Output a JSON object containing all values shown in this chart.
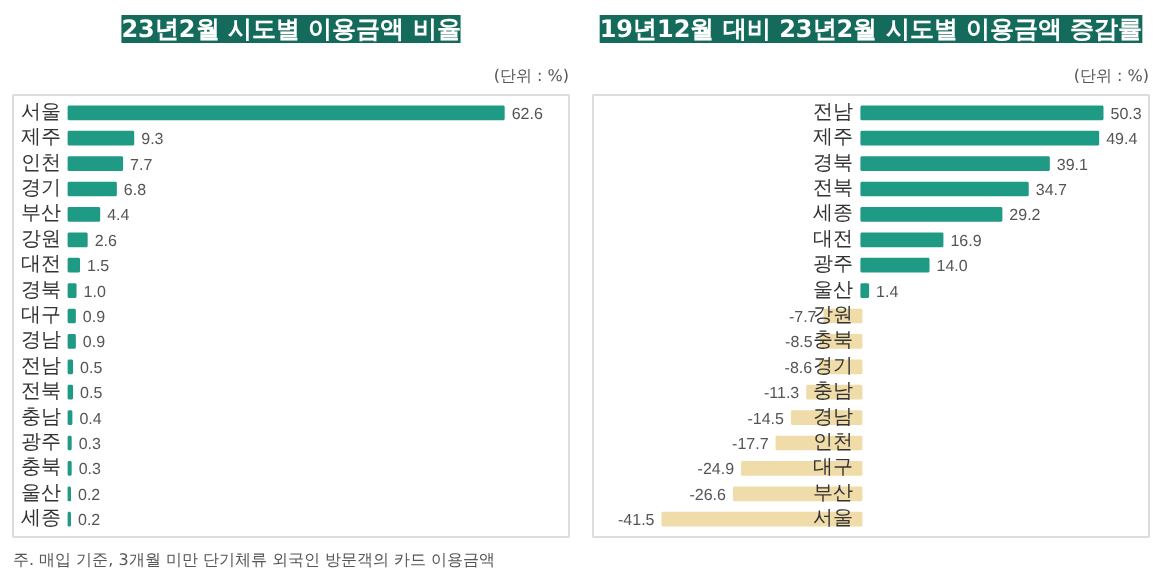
{
  "chart_data": [
    {
      "type": "bar",
      "orientation": "horizontal",
      "title": "23년2월 시도별 이용금액 비율",
      "annotations": [
        "(단위 : %)",
        "주. 매입 기준, 3개월 미만 단기체류 외국인 방문객의 카드 이용금액"
      ],
      "categories": [
        "서울",
        "제주",
        "인천",
        "경기",
        "부산",
        "강원",
        "대전",
        "경북",
        "대구",
        "경남",
        "전남",
        "전북",
        "충남",
        "광주",
        "충북",
        "울산",
        "세종"
      ],
      "values": [
        62.6,
        9.3,
        7.7,
        6.8,
        4.4,
        2.6,
        1.5,
        1.0,
        0.9,
        0.9,
        0.5,
        0.5,
        0.4,
        0.3,
        0.3,
        0.2,
        0.2
      ],
      "value_labels": [
        "62.6",
        "9.3",
        "7.7",
        "6.8",
        "4.4",
        "2.6",
        "1.5",
        "1.0",
        "0.9",
        "0.9",
        "0.5",
        "0.5",
        "0.4",
        "0.3",
        "0.3",
        "0.2",
        "0.2"
      ],
      "color": "#1f9a85",
      "xlim": [
        -8,
        72
      ],
      "grid": false
    },
    {
      "type": "bar",
      "orientation": "horizontal",
      "title": "19년12월 대비 23년2월 시도별 이용금액 증감률",
      "annotations": [
        "(단위 : %)"
      ],
      "categories": [
        "전남",
        "제주",
        "경북",
        "전북",
        "세종",
        "대전",
        "광주",
        "울산",
        "강원",
        "충북",
        "경기",
        "충남",
        "경남",
        "인천",
        "대구",
        "부산",
        "서울"
      ],
      "values": [
        50.3,
        49.4,
        39.1,
        34.7,
        29.2,
        16.9,
        14.0,
        1.4,
        -7.7,
        -8.5,
        -8.6,
        -11.3,
        -14.5,
        -17.7,
        -24.9,
        -26.6,
        -41.5
      ],
      "value_labels": [
        "50.3",
        "49.4",
        "39.1",
        "34.7",
        "29.2",
        "16.9",
        "14.0",
        "1.4",
        "-7.7",
        "-8.5",
        "-8.6",
        "-11.3",
        "-14.5",
        "-17.7",
        "-24.9",
        "-26.6",
        "-41.5"
      ],
      "colors": [
        "#1f9a85",
        "#1f9a85",
        "#1f9a85",
        "#1f9a85",
        "#1f9a85",
        "#1f9a85",
        "#1f9a85",
        "#1f9a85",
        "#f0dca8",
        "#f0dca8",
        "#f0dca8",
        "#f0dca8",
        "#f0dca8",
        "#f0dca8",
        "#f0dca8",
        "#f0dca8",
        "#f0dca8"
      ],
      "xlim": [
        -56,
        60
      ],
      "grid": false
    }
  ]
}
